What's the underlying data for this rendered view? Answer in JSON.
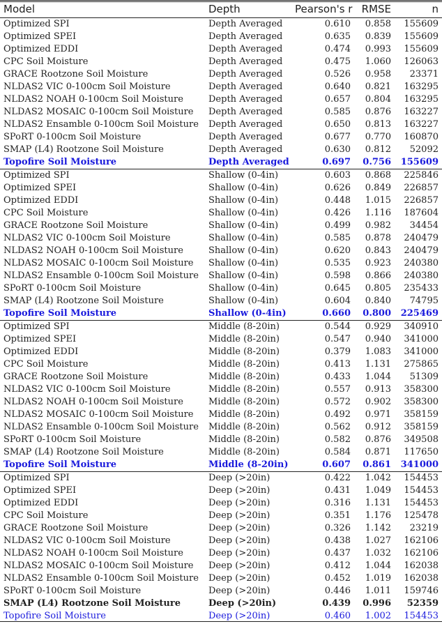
{
  "table": {
    "columns": [
      "Model",
      "Depth",
      "Pearson's r",
      "RMSE",
      "n"
    ],
    "groups": [
      {
        "rows": [
          {
            "model": "Optimized SPI",
            "depth": "Depth Averaged",
            "r": "0.610",
            "rmse": "0.858",
            "n": "155609"
          },
          {
            "model": "Optimized SPEI",
            "depth": "Depth Averaged",
            "r": "0.635",
            "rmse": "0.839",
            "n": "155609"
          },
          {
            "model": "Optimized EDDI",
            "depth": "Depth Averaged",
            "r": "0.474",
            "rmse": "0.993",
            "n": "155609"
          },
          {
            "model": "CPC Soil Moisture",
            "depth": "Depth Averaged",
            "r": "0.475",
            "rmse": "1.060",
            "n": "126063"
          },
          {
            "model": "GRACE Rootzone Soil Moisture",
            "depth": "Depth Averaged",
            "r": "0.526",
            "rmse": "0.958",
            "n": "23371"
          },
          {
            "model": "NLDAS2 VIC 0-100cm Soil Moisture",
            "depth": "Depth Averaged",
            "r": "0.640",
            "rmse": "0.821",
            "n": "163295"
          },
          {
            "model": "NLDAS2 NOAH 0-100cm Soil Moisture",
            "depth": "Depth Averaged",
            "r": "0.657",
            "rmse": "0.804",
            "n": "163295"
          },
          {
            "model": "NLDAS2 MOSAIC 0-100cm Soil Moisture",
            "depth": "Depth Averaged",
            "r": "0.585",
            "rmse": "0.876",
            "n": "163227"
          },
          {
            "model": "NLDAS2 Ensamble 0-100cm Soil Moisture",
            "depth": "Depth Averaged",
            "r": "0.650",
            "rmse": "0.813",
            "n": "163227"
          },
          {
            "model": "SPoRT 0-100cm Soil Moisture",
            "depth": "Depth Averaged",
            "r": "0.677",
            "rmse": "0.770",
            "n": "160870"
          },
          {
            "model": "SMAP (L4) Rootzone Soil Moisture",
            "depth": "Depth Averaged",
            "r": "0.630",
            "rmse": "0.812",
            "n": "52092"
          },
          {
            "model": "Topofire Soil Moisture",
            "depth": "Depth Averaged",
            "r": "0.697",
            "rmse": "0.756",
            "n": "155609",
            "highlight": true,
            "bold": true
          }
        ]
      },
      {
        "rows": [
          {
            "model": "Optimized SPI",
            "depth": "Shallow (0-4in)",
            "r": "0.603",
            "rmse": "0.868",
            "n": "225846"
          },
          {
            "model": "Optimized SPEI",
            "depth": "Shallow (0-4in)",
            "r": "0.626",
            "rmse": "0.849",
            "n": "226857"
          },
          {
            "model": "Optimized EDDI",
            "depth": "Shallow (0-4in)",
            "r": "0.448",
            "rmse": "1.015",
            "n": "226857"
          },
          {
            "model": "CPC Soil Moisture",
            "depth": "Shallow (0-4in)",
            "r": "0.426",
            "rmse": "1.116",
            "n": "187604"
          },
          {
            "model": "GRACE Rootzone Soil Moisture",
            "depth": "Shallow (0-4in)",
            "r": "0.499",
            "rmse": "0.982",
            "n": "34454"
          },
          {
            "model": "NLDAS2 VIC 0-100cm Soil Moisture",
            "depth": "Shallow (0-4in)",
            "r": "0.585",
            "rmse": "0.878",
            "n": "240479"
          },
          {
            "model": "NLDAS2 NOAH 0-100cm Soil Moisture",
            "depth": "Shallow (0-4in)",
            "r": "0.620",
            "rmse": "0.843",
            "n": "240479"
          },
          {
            "model": "NLDAS2 MOSAIC 0-100cm Soil Moisture",
            "depth": "Shallow (0-4in)",
            "r": "0.535",
            "rmse": "0.923",
            "n": "240380"
          },
          {
            "model": "NLDAS2 Ensamble 0-100cm Soil Moisture",
            "depth": "Shallow (0-4in)",
            "r": "0.598",
            "rmse": "0.866",
            "n": "240380"
          },
          {
            "model": "SPoRT 0-100cm Soil Moisture",
            "depth": "Shallow (0-4in)",
            "r": "0.645",
            "rmse": "0.805",
            "n": "235433"
          },
          {
            "model": "SMAP (L4) Rootzone Soil Moisture",
            "depth": "Shallow (0-4in)",
            "r": "0.604",
            "rmse": "0.840",
            "n": "74795"
          },
          {
            "model": "Topofire Soil Moisture",
            "depth": "Shallow (0-4in)",
            "r": "0.660",
            "rmse": "0.800",
            "n": "225469",
            "highlight": true,
            "bold": true
          }
        ]
      },
      {
        "rows": [
          {
            "model": "Optimized SPI",
            "depth": "Middle (8-20in)",
            "r": "0.544",
            "rmse": "0.929",
            "n": "340910"
          },
          {
            "model": "Optimized SPEI",
            "depth": "Middle (8-20in)",
            "r": "0.547",
            "rmse": "0.940",
            "n": "341000"
          },
          {
            "model": "Optimized EDDI",
            "depth": "Middle (8-20in)",
            "r": "0.379",
            "rmse": "1.083",
            "n": "341000"
          },
          {
            "model": "CPC Soil Moisture",
            "depth": "Middle (8-20in)",
            "r": "0.413",
            "rmse": "1.131",
            "n": "275865"
          },
          {
            "model": "GRACE Rootzone Soil Moisture",
            "depth": "Middle (8-20in)",
            "r": "0.433",
            "rmse": "1.044",
            "n": "51309"
          },
          {
            "model": "NLDAS2 VIC 0-100cm Soil Moisture",
            "depth": "Middle (8-20in)",
            "r": "0.557",
            "rmse": "0.913",
            "n": "358300"
          },
          {
            "model": "NLDAS2 NOAH 0-100cm Soil Moisture",
            "depth": "Middle (8-20in)",
            "r": "0.572",
            "rmse": "0.902",
            "n": "358300"
          },
          {
            "model": "NLDAS2 MOSAIC 0-100cm Soil Moisture",
            "depth": "Middle (8-20in)",
            "r": "0.492",
            "rmse": "0.971",
            "n": "358159"
          },
          {
            "model": "NLDAS2 Ensamble 0-100cm Soil Moisture",
            "depth": "Middle (8-20in)",
            "r": "0.562",
            "rmse": "0.912",
            "n": "358159"
          },
          {
            "model": "SPoRT 0-100cm Soil Moisture",
            "depth": "Middle (8-20in)",
            "r": "0.582",
            "rmse": "0.876",
            "n": "349508"
          },
          {
            "model": "SMAP (L4) Rootzone Soil Moisture",
            "depth": "Middle (8-20in)",
            "r": "0.584",
            "rmse": "0.871",
            "n": "117650"
          },
          {
            "model": "Topofire Soil Moisture",
            "depth": "Middle (8-20in)",
            "r": "0.607",
            "rmse": "0.861",
            "n": "341000",
            "highlight": true,
            "bold": true
          }
        ]
      },
      {
        "rows": [
          {
            "model": "Optimized SPI",
            "depth": "Deep (>20in)",
            "r": "0.422",
            "rmse": "1.042",
            "n": "154453"
          },
          {
            "model": "Optimized SPEI",
            "depth": "Deep (>20in)",
            "r": "0.431",
            "rmse": "1.049",
            "n": "154453"
          },
          {
            "model": "Optimized EDDI",
            "depth": "Deep (>20in)",
            "r": "0.316",
            "rmse": "1.131",
            "n": "154453"
          },
          {
            "model": "CPC Soil Moisture",
            "depth": "Deep (>20in)",
            "r": "0.351",
            "rmse": "1.176",
            "n": "125478"
          },
          {
            "model": "GRACE Rootzone Soil Moisture",
            "depth": "Deep (>20in)",
            "r": "0.326",
            "rmse": "1.142",
            "n": "23219"
          },
          {
            "model": "NLDAS2 VIC 0-100cm Soil Moisture",
            "depth": "Deep (>20in)",
            "r": "0.438",
            "rmse": "1.027",
            "n": "162106"
          },
          {
            "model": "NLDAS2 NOAH 0-100cm Soil Moisture",
            "depth": "Deep (>20in)",
            "r": "0.437",
            "rmse": "1.032",
            "n": "162106"
          },
          {
            "model": "NLDAS2 MOSAIC 0-100cm Soil Moisture",
            "depth": "Deep (>20in)",
            "r": "0.412",
            "rmse": "1.044",
            "n": "162038"
          },
          {
            "model": "NLDAS2 Ensamble 0-100cm Soil Moisture",
            "depth": "Deep (>20in)",
            "r": "0.452",
            "rmse": "1.019",
            "n": "162038"
          },
          {
            "model": "SPoRT 0-100cm Soil Moisture",
            "depth": "Deep (>20in)",
            "r": "0.446",
            "rmse": "1.011",
            "n": "159746"
          },
          {
            "model": "SMAP (L4) Rootzone Soil Moisture",
            "depth": "Deep (>20in)",
            "r": "0.439",
            "rmse": "0.996",
            "n": "52359",
            "bold": true
          },
          {
            "model": "Topofire Soil Moisture",
            "depth": "Deep (>20in)",
            "r": "0.460",
            "rmse": "1.002",
            "n": "154453",
            "highlight": true
          }
        ]
      }
    ]
  },
  "colors": {
    "text": "#222222",
    "highlight": "#1a1adc",
    "rule": "#222222"
  }
}
